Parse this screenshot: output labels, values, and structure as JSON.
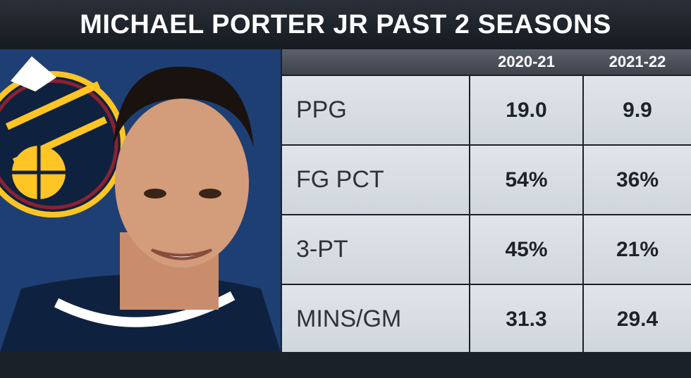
{
  "header": {
    "title": "MICHAEL PORTER JR PAST 2 SEASONS"
  },
  "table": {
    "columns": [
      "2020-21",
      "2021-22"
    ],
    "rows": [
      [
        "PPG",
        "19.0",
        "9.9"
      ],
      [
        "FG PCT",
        "54%",
        "36%"
      ],
      [
        "3-PT",
        "45%",
        "21%"
      ],
      [
        "MINS/GM",
        "31.3",
        "29.4"
      ]
    ]
  }
}
